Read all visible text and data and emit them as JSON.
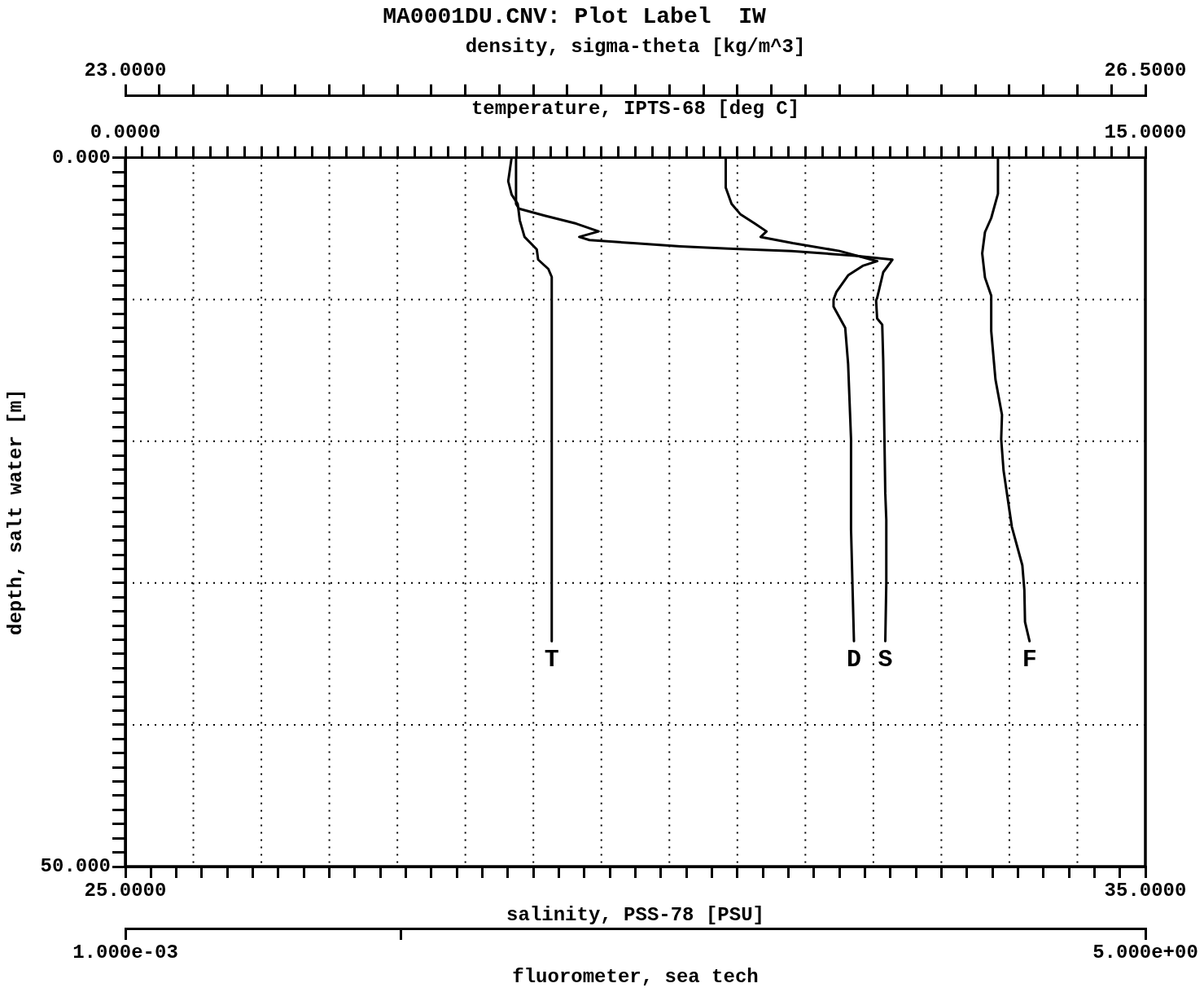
{
  "chart_data": [
    {
      "type": "line",
      "title": "MA0001DU.CNV: Plot Label  IW",
      "marker": "none",
      "grid": true,
      "ylabel": "depth, salt water [m]",
      "xlabel": "salinity, PSS-78 [PSU]",
      "x2label": "temperature, IPTS-68 [deg C]",
      "ylim": [
        50,
        0
      ],
      "yticks": [
        {
          "value": 0,
          "label": "0.000"
        },
        {
          "value": 1,
          "label": null
        },
        {
          "value": 2,
          "label": null
        },
        {
          "value": 3,
          "label": null
        },
        {
          "value": 4,
          "label": null
        },
        {
          "value": 5,
          "label": null
        },
        {
          "value": 6,
          "label": null
        },
        {
          "value": 7,
          "label": null
        },
        {
          "value": 8,
          "label": null
        },
        {
          "value": 9,
          "label": null
        },
        {
          "value": 10,
          "label": null
        },
        {
          "value": 11,
          "label": null
        },
        {
          "value": 12,
          "label": null
        },
        {
          "value": 13,
          "label": null
        },
        {
          "value": 14,
          "label": null
        },
        {
          "value": 15,
          "label": null
        },
        {
          "value": 16,
          "label": null
        },
        {
          "value": 17,
          "label": null
        },
        {
          "value": 18,
          "label": null
        },
        {
          "value": 19,
          "label": null
        },
        {
          "value": 20,
          "label": null
        },
        {
          "value": 21,
          "label": null
        },
        {
          "value": 22,
          "label": null
        },
        {
          "value": 23,
          "label": null
        },
        {
          "value": 24,
          "label": null
        },
        {
          "value": 25,
          "label": null
        },
        {
          "value": 26,
          "label": null
        },
        {
          "value": 27,
          "label": null
        },
        {
          "value": 28,
          "label": null
        },
        {
          "value": 29,
          "label": null
        },
        {
          "value": 30,
          "label": null
        },
        {
          "value": 31,
          "label": null
        },
        {
          "value": 32,
          "label": null
        },
        {
          "value": 33,
          "label": null
        },
        {
          "value": 34,
          "label": null
        },
        {
          "value": 35,
          "label": null
        },
        {
          "value": 36,
          "label": null
        },
        {
          "value": 37,
          "label": null
        },
        {
          "value": 38,
          "label": null
        },
        {
          "value": 39,
          "label": null
        },
        {
          "value": 40,
          "label": null
        },
        {
          "value": 41,
          "label": null
        },
        {
          "value": 42,
          "label": null
        },
        {
          "value": 43,
          "label": null
        },
        {
          "value": 44,
          "label": null
        },
        {
          "value": 45,
          "label": null
        },
        {
          "value": 46,
          "label": null
        },
        {
          "value": 47,
          "label": null
        },
        {
          "value": 48,
          "label": null
        },
        {
          "value": 49,
          "label": null
        },
        {
          "value": 50,
          "label": "50.000"
        }
      ],
      "xlim": [
        25,
        35
      ],
      "xticks": [
        {
          "value": 25,
          "label": "25.0000"
        },
        {
          "value": 25.25,
          "label": null
        },
        {
          "value": 25.5,
          "label": null
        },
        {
          "value": 25.75,
          "label": null
        },
        {
          "value": 26,
          "label": null
        },
        {
          "value": 26.25,
          "label": null
        },
        {
          "value": 26.5,
          "label": null
        },
        {
          "value": 26.75,
          "label": null
        },
        {
          "value": 27,
          "label": null
        },
        {
          "value": 27.25,
          "label": null
        },
        {
          "value": 27.5,
          "label": null
        },
        {
          "value": 27.75,
          "label": null
        },
        {
          "value": 28,
          "label": null
        },
        {
          "value": 28.25,
          "label": null
        },
        {
          "value": 28.5,
          "label": null
        },
        {
          "value": 28.75,
          "label": null
        },
        {
          "value": 29,
          "label": null
        },
        {
          "value": 29.25,
          "label": null
        },
        {
          "value": 29.5,
          "label": null
        },
        {
          "value": 29.75,
          "label": null
        },
        {
          "value": 30,
          "label": null
        },
        {
          "value": 30.25,
          "label": null
        },
        {
          "value": 30.5,
          "label": null
        },
        {
          "value": 30.75,
          "label": null
        },
        {
          "value": 31,
          "label": null
        },
        {
          "value": 31.25,
          "label": null
        },
        {
          "value": 31.5,
          "label": null
        },
        {
          "value": 31.75,
          "label": null
        },
        {
          "value": 32,
          "label": null
        },
        {
          "value": 32.25,
          "label": null
        },
        {
          "value": 32.5,
          "label": null
        },
        {
          "value": 32.75,
          "label": null
        },
        {
          "value": 33,
          "label": null
        },
        {
          "value": 33.25,
          "label": null
        },
        {
          "value": 33.5,
          "label": null
        },
        {
          "value": 33.75,
          "label": null
        },
        {
          "value": 34,
          "label": null
        },
        {
          "value": 34.25,
          "label": null
        },
        {
          "value": 34.5,
          "label": null
        },
        {
          "value": 34.75,
          "label": null
        },
        {
          "value": 35,
          "label": "35.0000"
        }
      ],
      "x2lim": [
        0,
        15
      ],
      "x2ticks": [
        {
          "value": 0,
          "label": "0.0000"
        },
        {
          "value": 0.25,
          "label": null
        },
        {
          "value": 0.5,
          "label": null
        },
        {
          "value": 0.75,
          "label": null
        },
        {
          "value": 1,
          "label": null
        },
        {
          "value": 1.25,
          "label": null
        },
        {
          "value": 1.5,
          "label": null
        },
        {
          "value": 1.75,
          "label": null
        },
        {
          "value": 2,
          "label": null
        },
        {
          "value": 2.25,
          "label": null
        },
        {
          "value": 2.5,
          "label": null
        },
        {
          "value": 2.75,
          "label": null
        },
        {
          "value": 3,
          "label": null
        },
        {
          "value": 3.25,
          "label": null
        },
        {
          "value": 3.5,
          "label": null
        },
        {
          "value": 3.75,
          "label": null
        },
        {
          "value": 4,
          "label": null
        },
        {
          "value": 4.25,
          "label": null
        },
        {
          "value": 4.5,
          "label": null
        },
        {
          "value": 4.75,
          "label": null
        },
        {
          "value": 5,
          "label": null
        },
        {
          "value": 5.25,
          "label": null
        },
        {
          "value": 5.5,
          "label": null
        },
        {
          "value": 5.75,
          "label": null
        },
        {
          "value": 6,
          "label": null
        },
        {
          "value": 6.25,
          "label": null
        },
        {
          "value": 6.5,
          "label": null
        },
        {
          "value": 6.75,
          "label": null
        },
        {
          "value": 7,
          "label": null
        },
        {
          "value": 7.25,
          "label": null
        },
        {
          "value": 7.5,
          "label": null
        },
        {
          "value": 7.75,
          "label": null
        },
        {
          "value": 8,
          "label": null
        },
        {
          "value": 8.25,
          "label": null
        },
        {
          "value": 8.5,
          "label": null
        },
        {
          "value": 8.75,
          "label": null
        },
        {
          "value": 9,
          "label": null
        },
        {
          "value": 9.25,
          "label": null
        },
        {
          "value": 9.5,
          "label": null
        },
        {
          "value": 9.75,
          "label": null
        },
        {
          "value": 10,
          "label": null
        },
        {
          "value": 10.25,
          "label": null
        },
        {
          "value": 10.5,
          "label": null
        },
        {
          "value": 10.75,
          "label": null
        },
        {
          "value": 11,
          "label": null
        },
        {
          "value": 11.25,
          "label": null
        },
        {
          "value": 11.5,
          "label": null
        },
        {
          "value": 11.75,
          "label": null
        },
        {
          "value": 12,
          "label": null
        },
        {
          "value": 12.25,
          "label": null
        },
        {
          "value": 12.5,
          "label": null
        },
        {
          "value": 12.75,
          "label": null
        },
        {
          "value": 13,
          "label": null
        },
        {
          "value": 13.25,
          "label": null
        },
        {
          "value": 13.5,
          "label": null
        },
        {
          "value": 13.75,
          "label": null
        },
        {
          "value": 14,
          "label": null
        },
        {
          "value": 14.25,
          "label": null
        },
        {
          "value": 14.5,
          "label": null
        },
        {
          "value": 14.75,
          "label": null
        },
        {
          "value": 15,
          "label": "15.0000"
        }
      ],
      "series": [
        {
          "name": "T",
          "color": "#000000",
          "axis": "x2",
          "x": [
            5.68,
            5.63,
            5.68,
            5.77,
            5.8,
            5.87,
            6.05,
            6.07,
            6.22,
            6.27,
            6.27
          ],
          "values": [
            0,
            1.66,
            2.6,
            3.26,
            4.42,
            5.59,
            6.47,
            7.19,
            7.85,
            8.41,
            34.1
          ]
        },
        {
          "name": "S",
          "color": "#000000",
          "x": [
            28.83,
            28.83,
            28.86,
            29.11,
            29.42,
            29.64,
            29.45,
            29.55,
            29.98,
            30.44,
            30.91,
            31.53,
            32.15,
            32.52,
            32.43,
            32.37,
            32.36,
            32.37,
            32.42,
            32.43,
            32.45,
            32.46,
            32.46,
            32.45
          ],
          "values": [
            0,
            3.26,
            3.6,
            4.09,
            4.65,
            5.2,
            5.59,
            5.81,
            6.03,
            6.25,
            6.42,
            6.58,
            6.91,
            7.19,
            8.08,
            9.9,
            10.07,
            11.34,
            11.78,
            14.33,
            23.67,
            25.55,
            29.98,
            34.1
          ]
        }
      ]
    },
    {
      "type": "line",
      "marker": "none",
      "tick_labels": "x",
      "log": "x",
      "xlabel": "fluorometer, sea tech",
      "x2label": "density, sigma-theta [kg/m^3]",
      "ylim": [
        50,
        0
      ],
      "yticks": [
        {
          "value": 0,
          "label": null
        },
        {
          "value": 1,
          "label": null
        },
        {
          "value": 2,
          "label": null
        },
        {
          "value": 3,
          "label": null
        },
        {
          "value": 4,
          "label": null
        },
        {
          "value": 5,
          "label": null
        },
        {
          "value": 6,
          "label": null
        },
        {
          "value": 7,
          "label": null
        },
        {
          "value": 8,
          "label": null
        },
        {
          "value": 9,
          "label": null
        },
        {
          "value": 10,
          "label": null
        },
        {
          "value": 11,
          "label": null
        },
        {
          "value": 12,
          "label": null
        },
        {
          "value": 13,
          "label": null
        },
        {
          "value": 14,
          "label": null
        },
        {
          "value": 15,
          "label": null
        },
        {
          "value": 16,
          "label": null
        },
        {
          "value": 17,
          "label": null
        },
        {
          "value": 18,
          "label": null
        },
        {
          "value": 19,
          "label": null
        },
        {
          "value": 20,
          "label": null
        },
        {
          "value": 21,
          "label": null
        },
        {
          "value": 22,
          "label": null
        },
        {
          "value": 23,
          "label": null
        },
        {
          "value": 24,
          "label": null
        },
        {
          "value": 25,
          "label": null
        },
        {
          "value": 26,
          "label": null
        },
        {
          "value": 27,
          "label": null
        },
        {
          "value": 28,
          "label": null
        },
        {
          "value": 29,
          "label": null
        },
        {
          "value": 30,
          "label": null
        },
        {
          "value": 31,
          "label": null
        },
        {
          "value": 32,
          "label": null
        },
        {
          "value": 33,
          "label": null
        },
        {
          "value": 34,
          "label": null
        },
        {
          "value": 35,
          "label": null
        },
        {
          "value": 36,
          "label": null
        },
        {
          "value": 37,
          "label": null
        },
        {
          "value": 38,
          "label": null
        },
        {
          "value": 39,
          "label": null
        },
        {
          "value": 40,
          "label": null
        },
        {
          "value": 41,
          "label": null
        },
        {
          "value": 42,
          "label": null
        },
        {
          "value": 43,
          "label": null
        },
        {
          "value": 44,
          "label": null
        },
        {
          "value": 45,
          "label": null
        },
        {
          "value": 46,
          "label": null
        },
        {
          "value": 47,
          "label": null
        },
        {
          "value": 48,
          "label": null
        },
        {
          "value": 49,
          "label": null
        },
        {
          "value": 50,
          "label": null
        }
      ],
      "xlim": [
        0.001,
        5
      ],
      "xticks": [
        {
          "value": 0.001,
          "label": "1.000e-03"
        },
        {
          "value": 0.01,
          "label": null
        },
        {
          "value": 5,
          "label": "5.000e+00"
        }
      ],
      "x2lim": [
        23,
        26.5
      ],
      "x2ticks": [
        {
          "value": 23,
          "label": "23.0000"
        },
        {
          "value": 23.1167,
          "label": null
        },
        {
          "value": 23.2333,
          "label": null
        },
        {
          "value": 23.35,
          "label": null
        },
        {
          "value": 23.4667,
          "label": null
        },
        {
          "value": 23.5833,
          "label": null
        },
        {
          "value": 23.7,
          "label": null
        },
        {
          "value": 23.8167,
          "label": null
        },
        {
          "value": 23.9333,
          "label": null
        },
        {
          "value": 24.05,
          "label": null
        },
        {
          "value": 24.1667,
          "label": null
        },
        {
          "value": 24.2833,
          "label": null
        },
        {
          "value": 24.4,
          "label": null
        },
        {
          "value": 24.5167,
          "label": null
        },
        {
          "value": 24.6333,
          "label": null
        },
        {
          "value": 24.75,
          "label": null
        },
        {
          "value": 24.8667,
          "label": null
        },
        {
          "value": 24.9833,
          "label": null
        },
        {
          "value": 25.1,
          "label": null
        },
        {
          "value": 25.2167,
          "label": null
        },
        {
          "value": 25.3333,
          "label": null
        },
        {
          "value": 25.45,
          "label": null
        },
        {
          "value": 25.5667,
          "label": null
        },
        {
          "value": 25.6833,
          "label": null
        },
        {
          "value": 25.8,
          "label": null
        },
        {
          "value": 25.9167,
          "label": null
        },
        {
          "value": 26.0333,
          "label": null
        },
        {
          "value": 26.15,
          "label": null
        },
        {
          "value": 26.2667,
          "label": null
        },
        {
          "value": 26.3833,
          "label": null
        },
        {
          "value": 26.5,
          "label": "26.5000"
        }
      ],
      "series": [
        {
          "name": "D",
          "color": "#000000",
          "axis": "x2",
          "x": [
            25.06,
            25.06,
            25.08,
            25.11,
            25.16,
            25.2,
            25.18,
            25.29,
            25.45,
            25.58,
            25.53,
            25.48,
            25.44,
            25.43,
            25.43,
            25.47,
            25.48,
            25.49,
            25.49,
            25.5
          ],
          "values": [
            0,
            2.1,
            3.26,
            3.98,
            4.65,
            5.2,
            5.59,
            6.03,
            6.58,
            7.3,
            7.63,
            8.3,
            9.46,
            10.01,
            10.51,
            12,
            14.55,
            19.86,
            26.22,
            34.1
          ]
        },
        {
          "name": "F",
          "color": "#000000",
          "x": [
            1.46,
            1.46,
            1.38,
            1.31,
            1.28,
            1.31,
            1.38,
            1.38,
            1.43,
            1.51,
            1.5,
            1.53,
            1.64,
            1.79,
            1.82,
            1.83,
            1.9
          ],
          "values": [
            0,
            2.54,
            4.26,
            5.25,
            6.75,
            8.46,
            9.73,
            12.22,
            15.65,
            18.14,
            19.86,
            22.07,
            26.05,
            28.76,
            30.48,
            32.74,
            34.1
          ]
        }
      ]
    }
  ]
}
